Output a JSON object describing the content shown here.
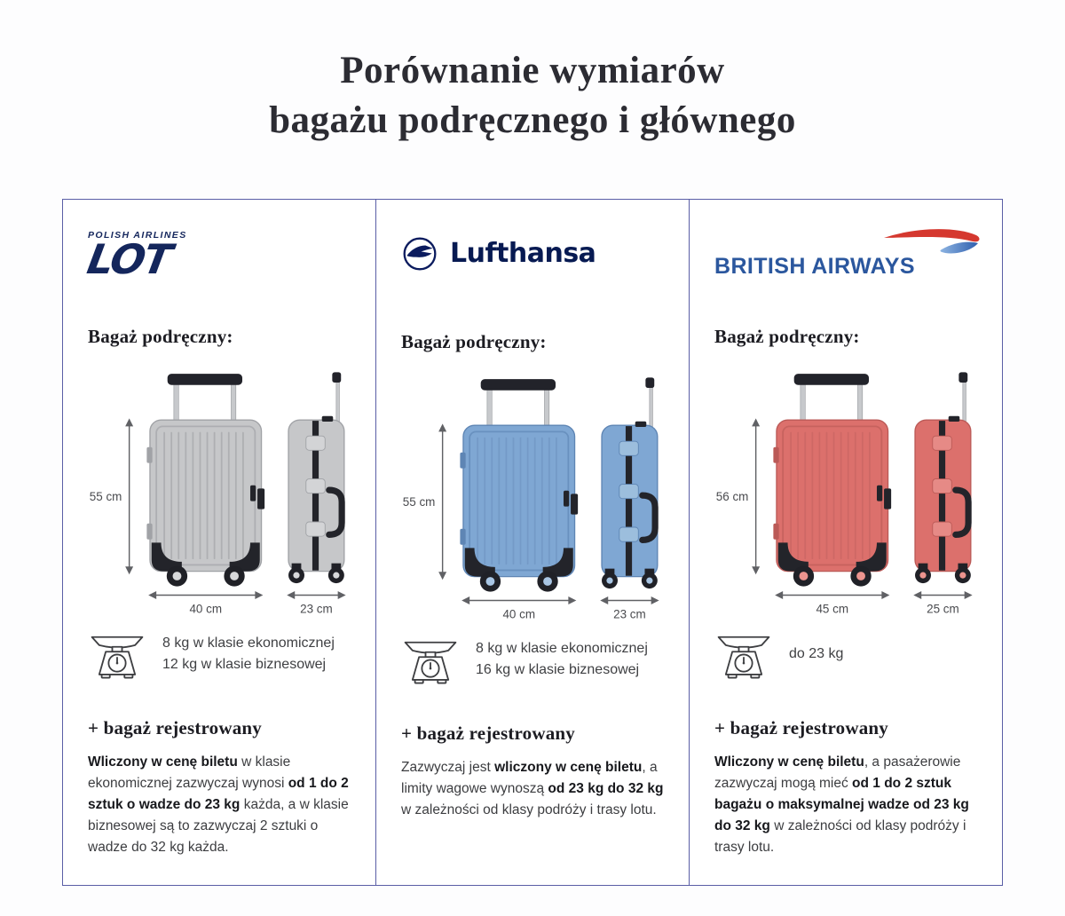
{
  "title": {
    "line1": "Porównanie wymiarów",
    "line2": "bagażu podręcznego i głównego"
  },
  "colors": {
    "panel_border": "#5a5ea6",
    "arrow": "#606165",
    "dim_label": "#4a4b4f",
    "lot_navy": "#14265c",
    "lufthansa_navy": "#071a52",
    "ba_blue": "#2b579e",
    "ba_red": "#d5382f"
  },
  "airlines": [
    {
      "logo_top": "POLISH AIRLINES",
      "logo_main": "LOT",
      "hand_heading": "Bagaż podręczny:",
      "dims": {
        "height": "55 cm",
        "width": "40 cm",
        "depth": "23 cm"
      },
      "case": {
        "body": "#c6c7c9",
        "shade": "#a0a2a6",
        "ridge": "#97999d",
        "hub": "#d8d9db",
        "buckle": "#d3d4d6"
      },
      "weight_lines": [
        "8 kg w klasie ekonomicznej",
        "12 kg w klasie biznesowej"
      ],
      "checked_heading": "+ bagaż rejestrowany",
      "checked_text": [
        {
          "text": "Wliczony w cenę biletu",
          "bold": true
        },
        {
          "text": " w klasie ekonomicznej zazwyczaj wynosi ",
          "bold": false
        },
        {
          "text": "od 1 do 2 sztuk o wadze do 23 kg",
          "bold": true
        },
        {
          "text": " każda, a w klasie biznesowej są to zazwyczaj 2 sztuki o wadze do 32 kg każda.",
          "bold": false
        }
      ]
    },
    {
      "logo_main": "Lufthansa",
      "hand_heading": "Bagaż podręczny:",
      "dims": {
        "height": "55 cm",
        "width": "40 cm",
        "depth": "23 cm"
      },
      "case": {
        "body": "#7fa7d3",
        "shade": "#5e85b4",
        "ridge": "#6a8fbc",
        "hub": "#a9c6e4",
        "buckle": "#9cbedd"
      },
      "weight_lines": [
        "8 kg w klasie ekonomicznej",
        "16 kg w klasie biznesowej"
      ],
      "checked_heading": "+ bagaż rejestrowany",
      "checked_text": [
        {
          "text": "Zazwyczaj jest ",
          "bold": false
        },
        {
          "text": "wliczony w cenę biletu",
          "bold": true
        },
        {
          "text": ", a limity wagowe wynoszą ",
          "bold": false
        },
        {
          "text": "od 23 kg do 32 kg",
          "bold": true
        },
        {
          "text": " w zależności od klasy podróży i trasy lotu.",
          "bold": false
        }
      ]
    },
    {
      "logo_main": "BRITISH AIRWAYS",
      "hand_heading": "Bagaż podręczny:",
      "dims": {
        "height": "56 cm",
        "width": "45 cm",
        "depth": "25 cm"
      },
      "case": {
        "body": "#dc706c",
        "shade": "#bb5a57",
        "ridge": "#c1625f",
        "hub": "#ec948f",
        "buckle": "#e68a86"
      },
      "weight_lines": [
        "do 23 kg"
      ],
      "checked_heading": "+ bagaż rejestrowany",
      "checked_text": [
        {
          "text": "Wliczony w cenę biletu",
          "bold": true
        },
        {
          "text": ", a pasażerowie zazwyczaj mogą mieć ",
          "bold": false
        },
        {
          "text": "od 1 do 2 sztuk bagażu o maksymalnej wadze od 23 kg do 32 kg",
          "bold": true
        },
        {
          "text": " w zależności od klasy podróży i trasy lotu.",
          "bold": false
        }
      ]
    }
  ]
}
